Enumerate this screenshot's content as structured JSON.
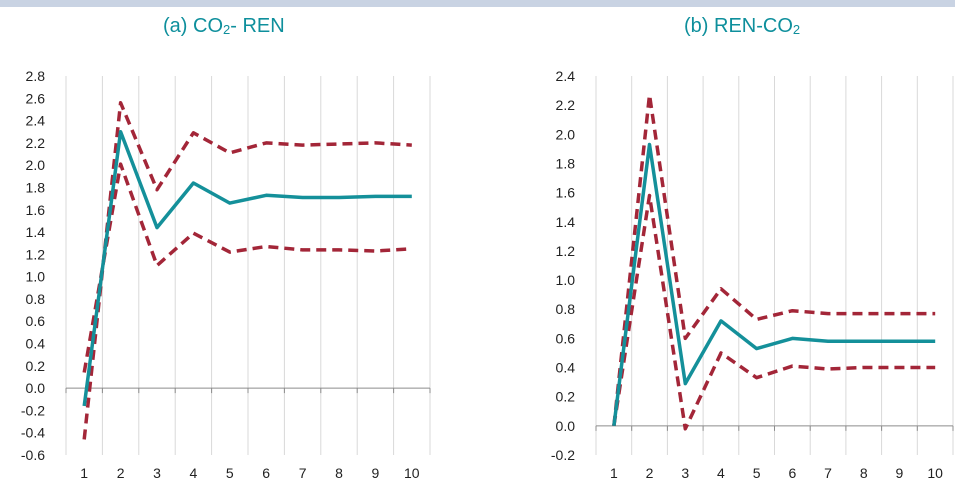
{
  "chart_data": [
    {
      "type": "line",
      "title_main": "(a) CO",
      "title_sub": "2",
      "title_rest": "- REN",
      "categories": [
        "1",
        "2",
        "3",
        "4",
        "5",
        "6",
        "7",
        "8",
        "9",
        "10"
      ],
      "ylim": [
        -0.6,
        2.8
      ],
      "yticks": [
        "2.8",
        "2.6",
        "2.4",
        "2.2",
        "2.0",
        "1.8",
        "1.6",
        "1.4",
        "1.2",
        "1.0",
        "0.8",
        "0.6",
        "0.4",
        "0.2",
        "0.0",
        "-0.2",
        "-0.4",
        "-0.6"
      ],
      "grid": "vertical",
      "series": [
        {
          "style": "solid",
          "color": "#14909a",
          "values": [
            -0.16,
            2.3,
            1.44,
            1.84,
            1.66,
            1.73,
            1.71,
            1.71,
            1.72,
            1.72
          ]
        },
        {
          "style": "dashed",
          "color": "#a32638",
          "values": [
            -0.46,
            2.56,
            1.78,
            2.29,
            2.11,
            2.2,
            2.18,
            2.19,
            2.2,
            2.18
          ]
        },
        {
          "style": "dashed",
          "color": "#a32638",
          "values": [
            0.14,
            2.01,
            1.1,
            1.39,
            1.22,
            1.27,
            1.24,
            1.24,
            1.23,
            1.25
          ]
        }
      ]
    },
    {
      "type": "line",
      "title_main": "(b) REN-CO",
      "title_sub": "2",
      "title_rest": "",
      "categories": [
        "1",
        "2",
        "3",
        "4",
        "5",
        "6",
        "7",
        "8",
        "9",
        "10"
      ],
      "ylim": [
        -0.2,
        2.4
      ],
      "yticks": [
        "2.4",
        "2.2",
        "2.0",
        "1.8",
        "1.6",
        "1.4",
        "1.2",
        "1.0",
        "0.8",
        "0.6",
        "0.4",
        "0.2",
        "0.0",
        "-0.2"
      ],
      "grid": "vertical",
      "series": [
        {
          "style": "solid",
          "color": "#14909a",
          "values": [
            0.0,
            1.93,
            0.29,
            0.72,
            0.53,
            0.6,
            0.58,
            0.58,
            0.58,
            0.58
          ]
        },
        {
          "style": "dashed",
          "color": "#a32638",
          "values": [
            0.0,
            2.27,
            0.6,
            0.94,
            0.73,
            0.79,
            0.77,
            0.77,
            0.77,
            0.77
          ]
        },
        {
          "style": "dashed",
          "color": "#a32638",
          "values": [
            0.0,
            1.58,
            -0.02,
            0.5,
            0.33,
            0.41,
            0.39,
            0.4,
            0.4,
            0.4
          ]
        }
      ]
    }
  ]
}
